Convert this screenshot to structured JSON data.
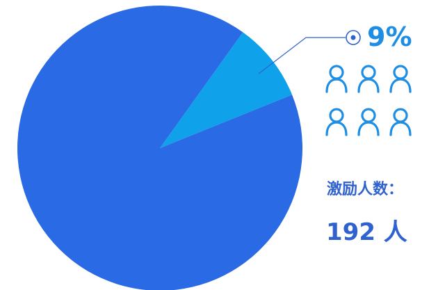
{
  "chart_data": {
    "type": "pie",
    "slices": [
      {
        "label": "激励",
        "value": 9,
        "color": "#0fa1ea"
      },
      {
        "label": "",
        "value": 91,
        "color": "#2a6be5"
      }
    ],
    "highlight_label": "9%"
  },
  "incentive": {
    "icon_count": 6,
    "icon_name": "person-icon",
    "icon_color": "#1d8ee4",
    "caption": "激励人数：",
    "count": "192 人"
  }
}
